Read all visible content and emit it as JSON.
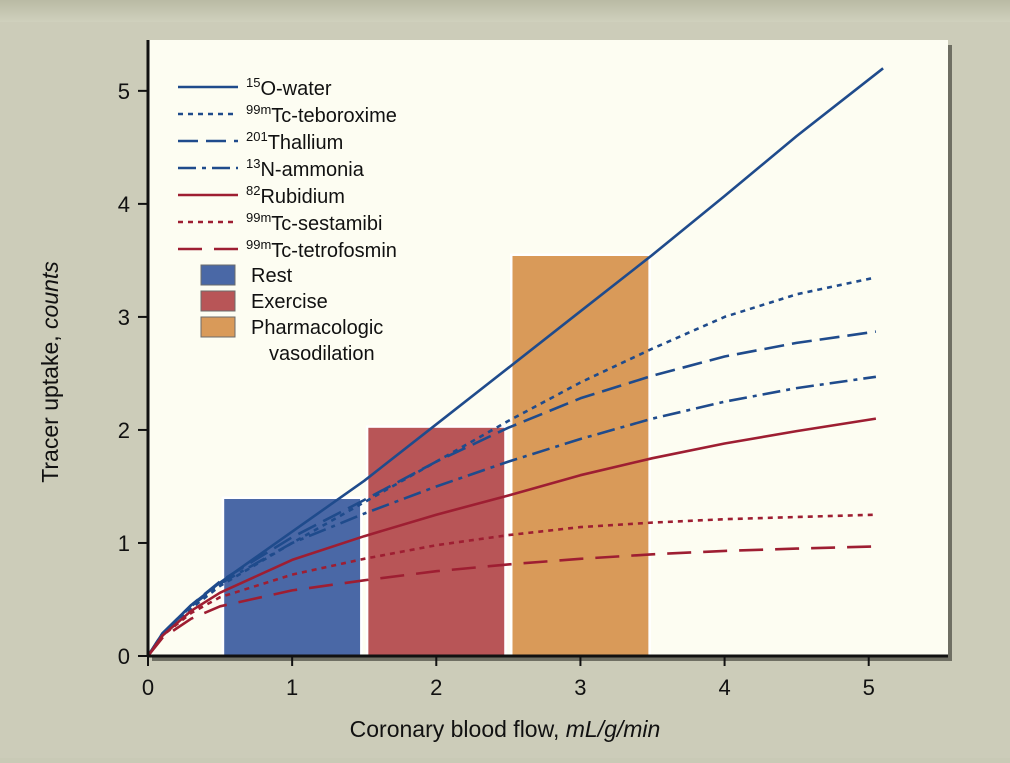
{
  "chart_data": {
    "type": "line",
    "xlabel": "Coronary blood flow,",
    "xlabel_unit": "mL/g/min",
    "ylabel": "Tracer uptake,",
    "ylabel_unit": "counts",
    "xlim": [
      0,
      5.55
    ],
    "ylim": [
      0,
      5.45
    ],
    "xticks": [
      0,
      1,
      2,
      3,
      4,
      5
    ],
    "yticks": [
      0,
      1,
      2,
      3,
      4,
      5
    ],
    "legend_position": "top-left",
    "background": "#fdfdf2",
    "series": [
      {
        "name_sup": "15",
        "name_main": "O-water",
        "color": "#1f4b8c",
        "dash": "solid",
        "x": [
          0,
          0.1,
          0.3,
          0.5,
          1,
          1.5,
          2,
          2.5,
          3,
          3.5,
          4,
          4.5,
          5.1
        ],
        "y": [
          0,
          0.2,
          0.45,
          0.65,
          1.1,
          1.55,
          2.05,
          2.55,
          3.05,
          3.55,
          4.07,
          4.6,
          5.2
        ]
      },
      {
        "name_sup": "99m",
        "name_main": "Tc-teboroxime",
        "color": "#1f4b8c",
        "dash": "dotted",
        "x": [
          0,
          0.1,
          0.3,
          0.5,
          1,
          1.5,
          2,
          2.5,
          3,
          3.5,
          4,
          4.5,
          5.05
        ],
        "y": [
          0,
          0.18,
          0.42,
          0.62,
          1.0,
          1.36,
          1.72,
          2.08,
          2.42,
          2.72,
          3.0,
          3.2,
          3.35
        ]
      },
      {
        "name_sup": "201",
        "name_main": "Thallium",
        "color": "#1f4b8c",
        "dash": "dashed",
        "x": [
          0,
          0.1,
          0.3,
          0.5,
          1,
          1.5,
          2,
          2.5,
          3,
          3.5,
          4,
          4.5,
          5.05
        ],
        "y": [
          0,
          0.2,
          0.45,
          0.66,
          1.05,
          1.38,
          1.72,
          2.02,
          2.28,
          2.48,
          2.65,
          2.77,
          2.87
        ]
      },
      {
        "name_sup": "13",
        "name_main": "N-ammonia",
        "color": "#1f4b8c",
        "dash": "dashdot",
        "x": [
          0,
          0.1,
          0.3,
          0.5,
          1,
          1.5,
          2,
          2.5,
          3,
          3.5,
          4,
          4.5,
          5.05
        ],
        "y": [
          0,
          0.2,
          0.44,
          0.64,
          1.0,
          1.26,
          1.5,
          1.72,
          1.92,
          2.1,
          2.25,
          2.37,
          2.47
        ]
      },
      {
        "name_sup": "82",
        "name_main": "Rubidium",
        "color": "#9e1e32",
        "dash": "solid",
        "x": [
          0,
          0.1,
          0.3,
          0.5,
          1,
          1.5,
          2,
          2.5,
          3,
          3.5,
          4,
          4.5,
          5.05
        ],
        "y": [
          0,
          0.18,
          0.4,
          0.56,
          0.85,
          1.06,
          1.25,
          1.42,
          1.6,
          1.75,
          1.88,
          1.99,
          2.1
        ]
      },
      {
        "name_sup": "99m",
        "name_main": "Tc-sestamibi",
        "color": "#9e1e32",
        "dash": "dotted",
        "x": [
          0,
          0.1,
          0.3,
          0.5,
          1,
          1.5,
          2,
          2.5,
          3,
          3.5,
          4,
          4.5,
          5.05
        ],
        "y": [
          0,
          0.18,
          0.38,
          0.52,
          0.72,
          0.86,
          0.98,
          1.07,
          1.14,
          1.18,
          1.21,
          1.23,
          1.25
        ]
      },
      {
        "name_sup": "99m",
        "name_main": "Tc-tetrofosmin",
        "color": "#9e1e32",
        "dash": "longdash",
        "x": [
          0,
          0.1,
          0.3,
          0.5,
          1,
          1.5,
          2,
          2.5,
          3,
          3.5,
          4,
          4.5,
          5.05
        ],
        "y": [
          0,
          0.16,
          0.33,
          0.44,
          0.58,
          0.67,
          0.75,
          0.81,
          0.86,
          0.9,
          0.93,
          0.95,
          0.97
        ]
      }
    ],
    "bars": [
      {
        "label": "Rest",
        "x_start": 0.52,
        "x_end": 1.48,
        "value": 1.4,
        "color": "#4a68a6"
      },
      {
        "label": "Exercise",
        "x_start": 1.52,
        "x_end": 2.48,
        "value": 2.03,
        "color": "#b85557"
      },
      {
        "label": "Pharmacologic",
        "label2": "vasodilation",
        "x_start": 2.52,
        "x_end": 3.48,
        "value": 3.55,
        "color": "#d99a59"
      }
    ]
  }
}
